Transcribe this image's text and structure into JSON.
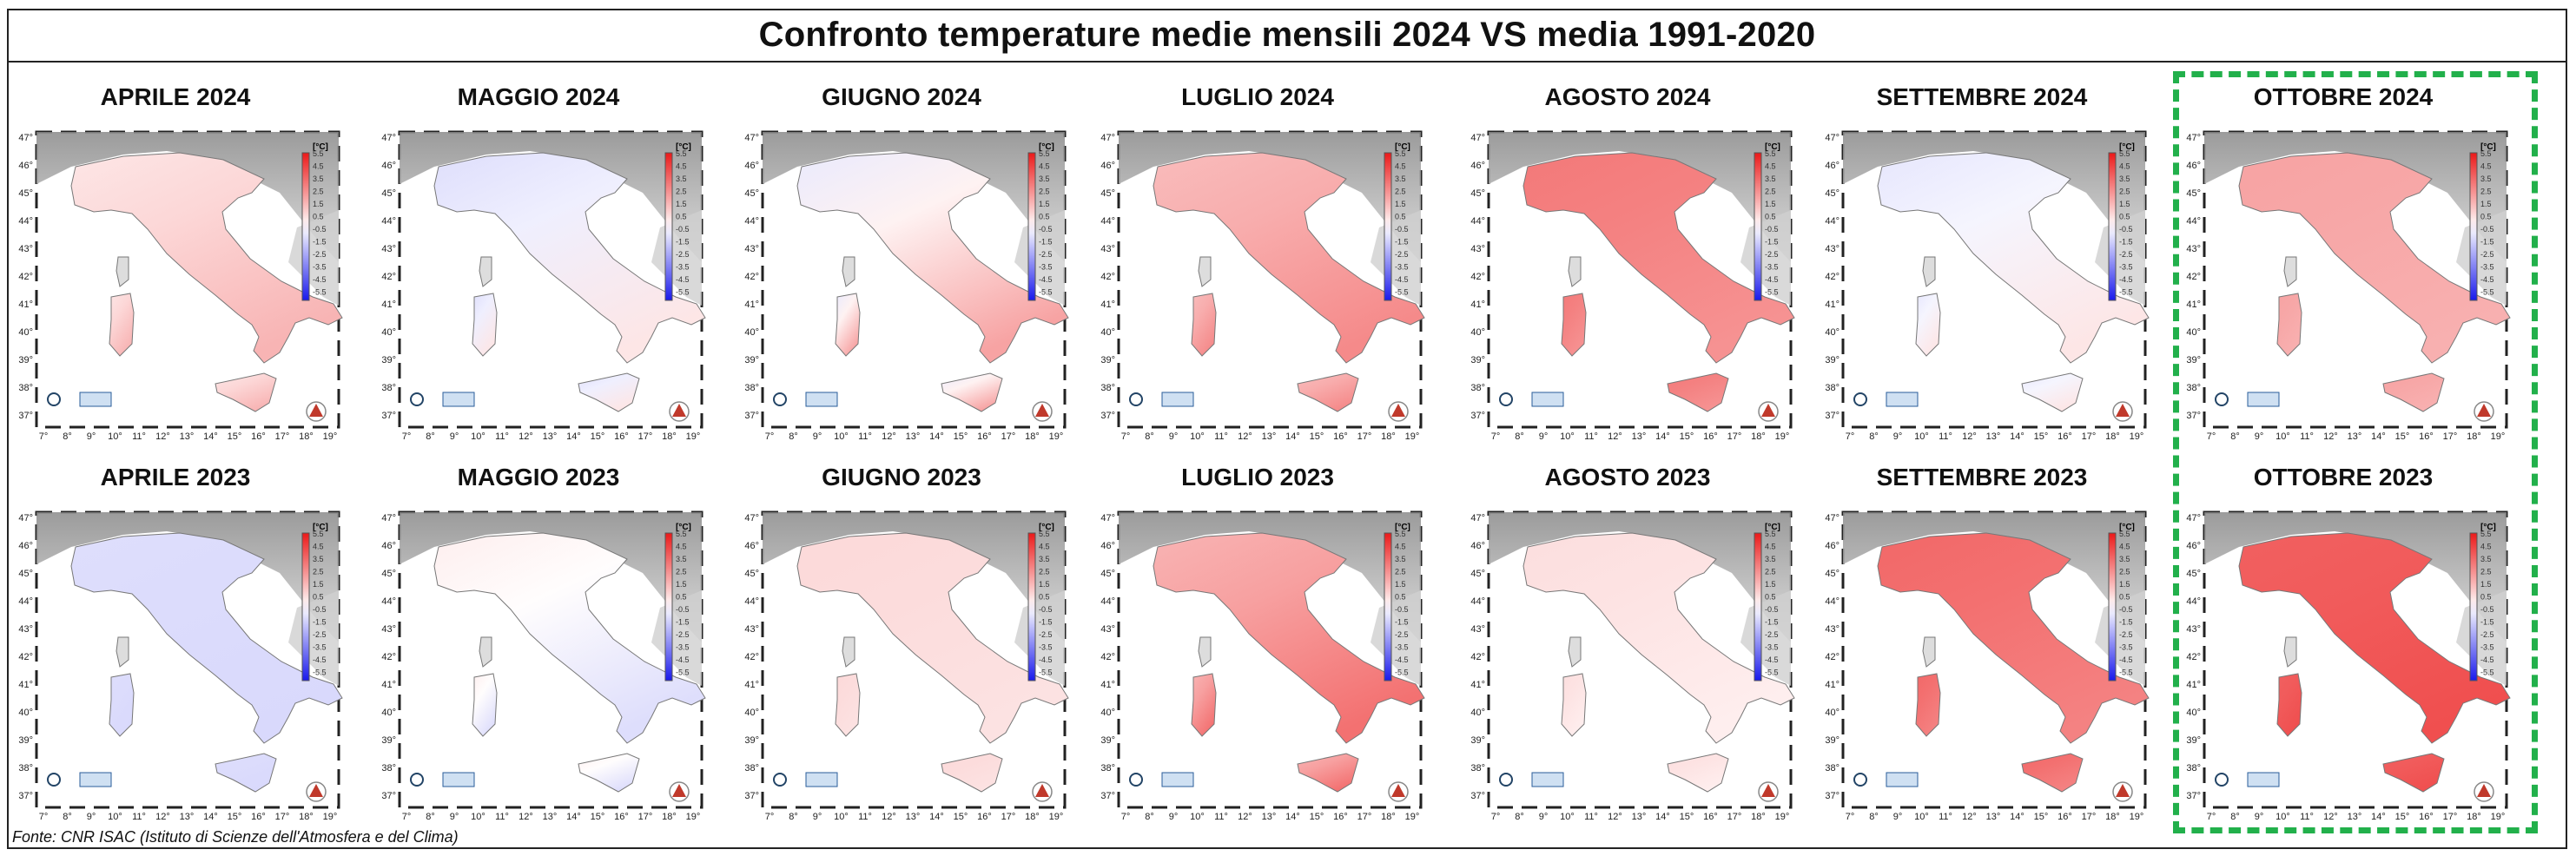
{
  "title": "Confronto temperature medie mensili 2024 VS media 1991-2020",
  "source": "Fonte: CNR ISAC (Istituto di Scienze dell'Atmosfera e del Clima)",
  "map_common": {
    "lat_labels": [
      "47°",
      "46°",
      "45°",
      "44°",
      "43°",
      "42°",
      "41°",
      "40°",
      "39°",
      "38°",
      "37°"
    ],
    "lon_labels": [
      "7°",
      "8°",
      "9°",
      "10°",
      "11°",
      "12°",
      "13°",
      "14°",
      "15°",
      "16°",
      "17°",
      "18°",
      "19°"
    ],
    "unit": "[°C]",
    "scale_labels": [
      "5.5",
      "4.5",
      "3.5",
      "2.5",
      "1.5",
      "0.5",
      "-0.5",
      "-1.5",
      "-2.5",
      "-3.5",
      "-4.5",
      "-5.5"
    ],
    "scale_values": [
      5.5,
      4.5,
      3.5,
      2.5,
      1.5,
      0.5,
      -0.5,
      -1.5,
      -2.5,
      -3.5,
      -4.5,
      -5.5
    ]
  },
  "panels": [
    {
      "label": "APRILE 2024",
      "north": 0.6,
      "south": 1.8,
      "highlighted": false
    },
    {
      "label": "MAGGIO 2024",
      "north": -0.8,
      "south": 0.6,
      "highlighted": false
    },
    {
      "label": "GIUGNO 2024",
      "north": -0.5,
      "south": 2.2,
      "highlighted": false
    },
    {
      "label": "LUGLIO 2024",
      "north": 1.6,
      "south": 2.8,
      "highlighted": false
    },
    {
      "label": "AGOSTO 2024",
      "north": 3.2,
      "south": 2.6,
      "highlighted": false
    },
    {
      "label": "SETTEMBRE 2024",
      "north": -0.6,
      "south": 0.6,
      "highlighted": false
    },
    {
      "label": "OTTOBRE 2024",
      "north": 2.2,
      "south": 1.9,
      "highlighted": true
    },
    {
      "label": "APRILE 2023",
      "north": -0.8,
      "south": -0.9,
      "highlighted": false
    },
    {
      "label": "MAGGIO 2023",
      "north": 0.4,
      "south": -0.8,
      "highlighted": false
    },
    {
      "label": "GIUGNO 2023",
      "north": 0.9,
      "south": 0.7,
      "highlighted": false
    },
    {
      "label": "LUGLIO 2023",
      "north": 1.8,
      "south": 3.4,
      "highlighted": false
    },
    {
      "label": "AGOSTO 2023",
      "north": 0.8,
      "south": 0.4,
      "highlighted": false
    },
    {
      "label": "SETTEMBRE 2023",
      "north": 3.6,
      "south": 3.0,
      "highlighted": false
    },
    {
      "label": "OTTOBRE 2023",
      "north": 3.8,
      "south": 4.2,
      "highlighted": true
    }
  ]
}
